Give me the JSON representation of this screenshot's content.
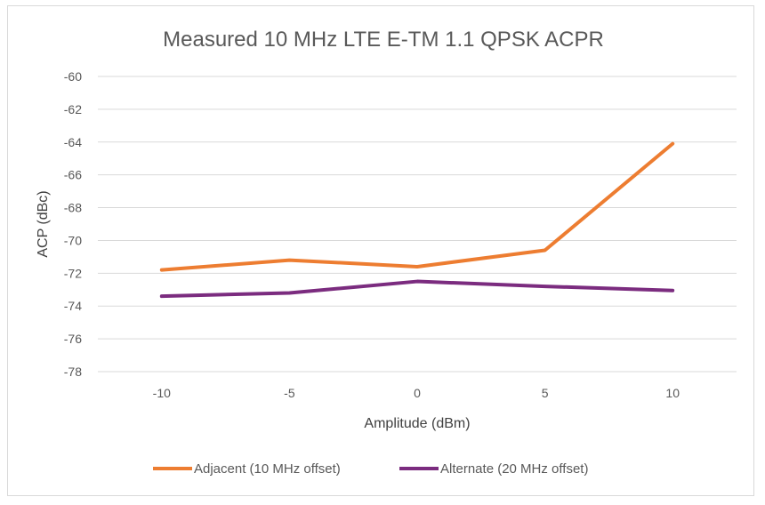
{
  "chart_data": {
    "type": "line",
    "title": "Measured 10 MHz LTE E-TM 1.1 QPSK ACPR",
    "xlabel": "Amplitude (dBm)",
    "ylabel": "ACP (dBc)",
    "categories": [
      "-10",
      "-5",
      "0",
      "5",
      "10"
    ],
    "yticks": [
      "-60",
      "-62",
      "-64",
      "-66",
      "-68",
      "-70",
      "-72",
      "-74",
      "-76",
      "-78"
    ],
    "ylim": [
      -78,
      -60
    ],
    "grid": true,
    "legend_position": "bottom",
    "series": [
      {
        "name": "Adjacent (10 MHz offset)",
        "color": "#ED7D31",
        "values": [
          -71.8,
          -71.2,
          -71.6,
          -70.6,
          -64.1
        ]
      },
      {
        "name": "Alternate (20 MHz offset)",
        "color": "#7B2C7F",
        "values": [
          -73.4,
          -73.2,
          -72.5,
          -72.8,
          -73.05
        ]
      }
    ]
  }
}
